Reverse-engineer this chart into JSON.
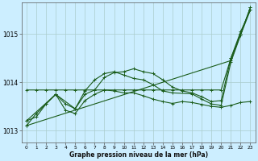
{
  "background_color": "#cceeff",
  "grid_color": "#aacccc",
  "line_color": "#1a5c1a",
  "xlabel": "Graphe pression niveau de la mer (hPa)",
  "ylim": [
    1012.75,
    1015.65
  ],
  "xlim": [
    -0.5,
    23.5
  ],
  "yticks": [
    1013,
    1014,
    1015
  ],
  "xticks": [
    0,
    1,
    2,
    3,
    4,
    5,
    6,
    7,
    8,
    9,
    10,
    11,
    12,
    13,
    14,
    15,
    16,
    17,
    18,
    19,
    20,
    21,
    22,
    23
  ],
  "series": [
    {
      "x": [
        0,
        21,
        22,
        23
      ],
      "y": [
        1013.1,
        1014.45,
        1015.0,
        1015.55
      ]
    },
    {
      "x": [
        0,
        1,
        2,
        3,
        4,
        5,
        6,
        7,
        8,
        9,
        10,
        11,
        12,
        13,
        14,
        15,
        16,
        17,
        18,
        19,
        20,
        21,
        22,
        23
      ],
      "y": [
        1013.1,
        1013.35,
        1013.55,
        1013.75,
        1013.55,
        1013.45,
        1013.75,
        1013.84,
        1014.1,
        1014.2,
        1014.22,
        1014.28,
        1014.22,
        1014.18,
        1014.05,
        1013.9,
        1013.82,
        1013.78,
        1013.7,
        1013.6,
        1013.62,
        1014.5,
        1015.05,
        1015.5
      ]
    },
    {
      "x": [
        0,
        1,
        2,
        3,
        4,
        5,
        6,
        7,
        8,
        9,
        10,
        11,
        12,
        13,
        14,
        15,
        16,
        17,
        18,
        19,
        20,
        21,
        22,
        23
      ],
      "y": [
        1013.84,
        1013.84,
        1013.84,
        1013.84,
        1013.84,
        1013.84,
        1013.84,
        1013.84,
        1013.84,
        1013.84,
        1013.84,
        1013.84,
        1013.84,
        1013.84,
        1013.84,
        1013.84,
        1013.84,
        1013.84,
        1013.84,
        1013.84,
        1013.84,
        1014.5,
        1015.0,
        1015.55
      ]
    },
    {
      "x": [
        0,
        1,
        2,
        3,
        4,
        5,
        6,
        7,
        8,
        9,
        10,
        11,
        12,
        13,
        14,
        15,
        16,
        17,
        18,
        19,
        20,
        21,
        22,
        23
      ],
      "y": [
        1013.2,
        1013.28,
        1013.55,
        1013.75,
        1013.42,
        1013.35,
        1013.62,
        1013.75,
        1013.84,
        1013.82,
        1013.78,
        1013.78,
        1013.72,
        1013.65,
        1013.6,
        1013.56,
        1013.6,
        1013.58,
        1013.54,
        1013.5,
        1013.48,
        1013.52,
        1013.58,
        1013.6
      ]
    },
    {
      "x": [
        0,
        3,
        5,
        6,
        7,
        8,
        9,
        10,
        11,
        12,
        13,
        14,
        15,
        17,
        18,
        19,
        20,
        21,
        22,
        23
      ],
      "y": [
        1013.2,
        1013.75,
        1013.45,
        1013.82,
        1014.05,
        1014.18,
        1014.22,
        1014.15,
        1014.08,
        1014.05,
        1013.95,
        1013.82,
        1013.78,
        1013.76,
        1013.65,
        1013.55,
        1013.52,
        1014.42,
        1014.98,
        1015.5
      ]
    }
  ]
}
